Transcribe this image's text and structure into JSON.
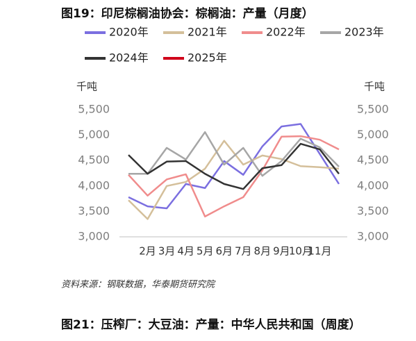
{
  "chart_data": {
    "type": "line",
    "title": "图19：印尼棕榈油协会：棕榈油：产量（月度）",
    "y_label": "千吨",
    "y2_label": "千吨",
    "categories": [
      null,
      "2月",
      "3月",
      "4月",
      "5月",
      "6月",
      "7月",
      "8月",
      "9月",
      "10月",
      "11月",
      null
    ],
    "series": [
      {
        "name": "2020年",
        "color": "#7b6fe0",
        "values": [
          3780,
          3600,
          3560,
          4040,
          3960,
          4490,
          4220,
          4780,
          5170,
          5220,
          4630,
          4040
        ]
      },
      {
        "name": "2021年",
        "color": "#d4bf9a",
        "values": [
          3720,
          3350,
          4000,
          4080,
          4340,
          4890,
          4420,
          4600,
          4530,
          4390,
          4370,
          4340
        ]
      },
      {
        "name": "2022年",
        "color": "#f08c8c",
        "values": [
          4220,
          3810,
          4130,
          4230,
          3400,
          3600,
          3780,
          4310,
          4970,
          4980,
          4910,
          4720
        ]
      },
      {
        "name": "2023年",
        "color": "#a6a6a6",
        "values": [
          4240,
          4240,
          4750,
          4520,
          5060,
          4420,
          4750,
          4200,
          4490,
          4930,
          4760,
          4380
        ]
      },
      {
        "name": "2024年",
        "color": "#333333",
        "values": [
          4610,
          4240,
          4480,
          4490,
          4240,
          4040,
          3940,
          4350,
          4410,
          4830,
          4720,
          4240
        ]
      },
      {
        "name": "2025年",
        "color": "#d0021b",
        "values": [
          null,
          null,
          null,
          null,
          null,
          null,
          null,
          null,
          null,
          null,
          null,
          null
        ]
      }
    ],
    "ylim": [
      3000,
      5500
    ],
    "yticks": [
      {
        "value": 3000,
        "label": "3,000"
      },
      {
        "value": 3500,
        "label": "3,500"
      },
      {
        "value": 4000,
        "label": "4,000"
      },
      {
        "value": 4500,
        "label": "4,500"
      },
      {
        "value": 5000,
        "label": "5,000"
      },
      {
        "value": 5500,
        "label": "5,500"
      }
    ],
    "y2lim": [
      3000,
      5500
    ],
    "y2ticks": [
      {
        "value": 3000,
        "label": "3,000"
      },
      {
        "value": 3500,
        "label": "3,500"
      },
      {
        "value": 4000,
        "label": "4,000"
      },
      {
        "value": 4500,
        "label": "4,500"
      },
      {
        "value": 5000,
        "label": "5,000"
      },
      {
        "value": 5500,
        "label": "5,500"
      }
    ],
    "source": "资料来源：钢联数据，华泰期货研究院"
  },
  "next_title": "图21：压榨厂：大豆油：产量：中华人民共和国（周度）"
}
